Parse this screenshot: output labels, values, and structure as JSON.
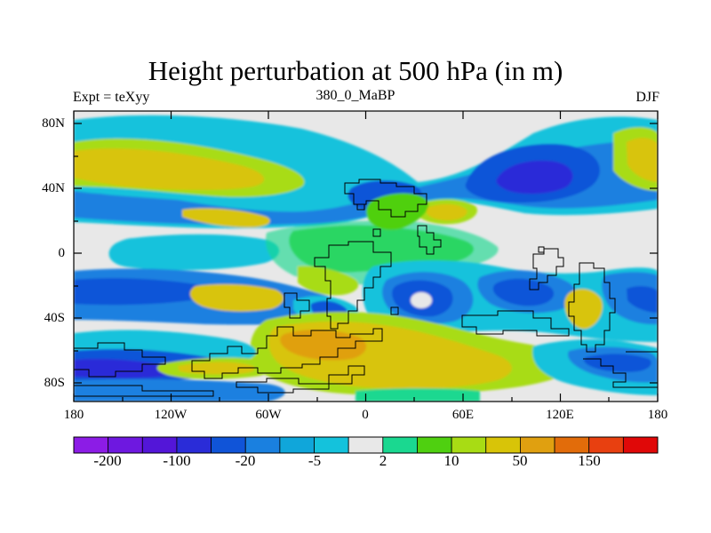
{
  "title": "Height perturbation at 500 hPa (in m)",
  "left_label": "Expt = teXyy",
  "center_label": "380_0_MaBP",
  "right_label": "DJF",
  "lat_ticks": [
    "80N",
    "40N",
    "0",
    "40S",
    "80S"
  ],
  "lon_ticks": [
    "180",
    "120W",
    "60W",
    "0",
    "60E",
    "120E",
    "180"
  ],
  "colorbar": {
    "colors": [
      "#8c1ce6",
      "#6e18e0",
      "#5316d8",
      "#2a2cd8",
      "#1054d8",
      "#1a80e0",
      "#10a6da",
      "#14c2dc",
      "#e8e8e8",
      "#1ad890",
      "#4fd010",
      "#a8dc14",
      "#d8c408",
      "#e0a010",
      "#e26c0a",
      "#e84010",
      "#e00808"
    ],
    "labels": [
      "-200",
      "-100",
      "-20",
      "-5",
      "2",
      "10",
      "50",
      "150"
    ]
  },
  "colors": {
    "background_neutral": "#e8e8e8",
    "coastline": "#000000"
  }
}
